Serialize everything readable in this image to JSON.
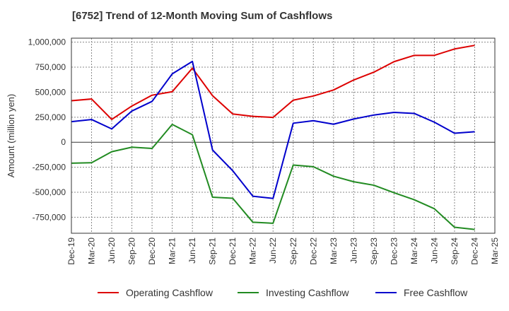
{
  "chart_data": {
    "type": "line",
    "title": "[6752]  Trend of 12-Month Moving Sum of Cashflows",
    "xlabel": "",
    "ylabel": "Amount (million yen)",
    "ylim": [
      -910000,
      1040000
    ],
    "yticks": [
      1000000,
      750000,
      500000,
      250000,
      0,
      -250000,
      -500000,
      -750000
    ],
    "ytick_labels": [
      "1,000,000",
      "750,000",
      "500,000",
      "250,000",
      "0",
      "-250,000",
      "-500,000",
      "-750,000"
    ],
    "categories": [
      "Dec-19",
      "Mar-20",
      "Jun-20",
      "Sep-20",
      "Dec-20",
      "Mar-21",
      "Jun-21",
      "Sep-21",
      "Dec-21",
      "Mar-22",
      "Jun-22",
      "Sep-22",
      "Dec-22",
      "Mar-23",
      "Jun-23",
      "Sep-23",
      "Dec-23",
      "Mar-24",
      "Jun-24",
      "Sep-24",
      "Dec-24",
      "Mar-25"
    ],
    "grid": true,
    "legend_position": "bottom",
    "series": [
      {
        "name": "Operating Cashflow",
        "color": "#dd0000",
        "values": [
          415000,
          432000,
          228000,
          362000,
          470000,
          505000,
          740000,
          465000,
          282000,
          258000,
          248000,
          420000,
          462000,
          522000,
          622000,
          700000,
          805000,
          868000,
          868000,
          932000,
          968000,
          null
        ]
      },
      {
        "name": "Investing Cashflow",
        "color": "#228b22",
        "values": [
          -210000,
          -205000,
          -95000,
          -50000,
          -62000,
          178000,
          75000,
          -550000,
          -560000,
          -800000,
          -810000,
          -228000,
          -245000,
          -340000,
          -395000,
          -430000,
          -505000,
          -575000,
          -665000,
          -850000,
          -872000,
          null
        ]
      },
      {
        "name": "Free Cashflow",
        "color": "#0000cc",
        "values": [
          205000,
          227000,
          133000,
          312000,
          408000,
          683000,
          808000,
          -78000,
          -285000,
          -540000,
          -562000,
          190000,
          215000,
          180000,
          232000,
          272000,
          298000,
          288000,
          200000,
          90000,
          105000,
          null
        ]
      }
    ]
  }
}
